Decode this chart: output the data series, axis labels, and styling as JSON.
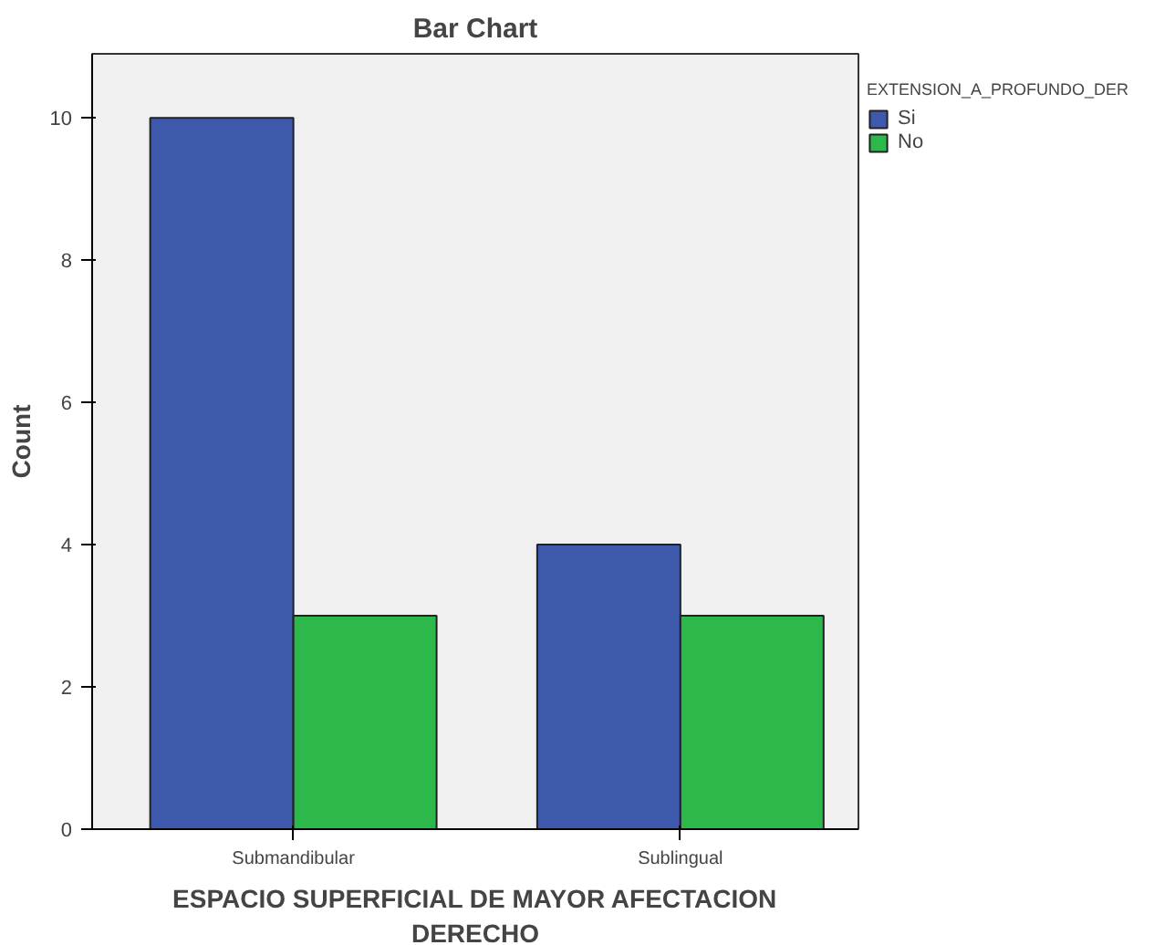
{
  "chart_data": {
    "type": "bar",
    "title": "Bar Chart",
    "xlabel": "ESPACIO SUPERFICIAL DE MAYOR AFECTACION\nDERECHO",
    "ylabel": "Count",
    "legend_title": "EXTENSION_A_PROFUNDO_DER",
    "categories": [
      "Submandibular",
      "Sublingual"
    ],
    "series": [
      {
        "name": "Si",
        "color": "#3e58ac",
        "values": [
          10,
          4
        ]
      },
      {
        "name": "No",
        "color": "#2db84b",
        "values": [
          3,
          3
        ]
      }
    ],
    "ylim": [
      0,
      10.9
    ],
    "yticks": [
      0,
      2,
      4,
      6,
      8,
      10
    ],
    "grid": false,
    "legend": "top right"
  }
}
